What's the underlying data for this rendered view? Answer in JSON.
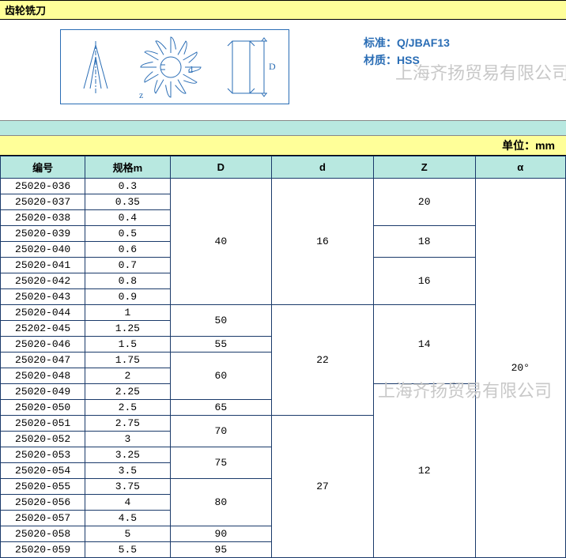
{
  "header": {
    "title": "齿轮铣刀"
  },
  "spec_text": {
    "line1_label": "标准：",
    "line1_value": "Q/JBAF13",
    "line2_label": "材质：",
    "line2_value": "HSS"
  },
  "watermark": "上海齐扬贸易有限公司",
  "unit_bar": "单位：mm",
  "columns": [
    "编号",
    "规格m",
    "D",
    "d",
    "Z",
    "α"
  ],
  "rows": [
    {
      "id": "25020-036",
      "spec": "0.3"
    },
    {
      "id": "25020-037",
      "spec": "0.35"
    },
    {
      "id": "25020-038",
      "spec": "0.4"
    },
    {
      "id": "25020-039",
      "spec": "0.5"
    },
    {
      "id": "25020-040",
      "spec": "0.6"
    },
    {
      "id": "25020-041",
      "spec": "0.7"
    },
    {
      "id": "25020-042",
      "spec": "0.8"
    },
    {
      "id": "25020-043",
      "spec": "0.9"
    },
    {
      "id": "25020-044",
      "spec": "1"
    },
    {
      "id": "25202-045",
      "spec": "1.25"
    },
    {
      "id": "25020-046",
      "spec": "1.5"
    },
    {
      "id": "25020-047",
      "spec": "1.75"
    },
    {
      "id": "25020-048",
      "spec": "2"
    },
    {
      "id": "25020-049",
      "spec": "2.25"
    },
    {
      "id": "25020-050",
      "spec": "2.5"
    },
    {
      "id": "25020-051",
      "spec": "2.75"
    },
    {
      "id": "25020-052",
      "spec": "3"
    },
    {
      "id": "25020-053",
      "spec": "3.25"
    },
    {
      "id": "25020-054",
      "spec": "3.5"
    },
    {
      "id": "25020-055",
      "spec": "3.75"
    },
    {
      "id": "25020-056",
      "spec": "4"
    },
    {
      "id": "25020-057",
      "spec": "4.5"
    },
    {
      "id": "25020-058",
      "spec": "5"
    },
    {
      "id": "25020-059",
      "spec": "5.5"
    }
  ],
  "merge_D": [
    {
      "start": 0,
      "span": 8,
      "value": "40"
    },
    {
      "start": 8,
      "span": 2,
      "value": "50"
    },
    {
      "start": 10,
      "span": 1,
      "value": "55"
    },
    {
      "start": 11,
      "span": 3,
      "value": "60"
    },
    {
      "start": 14,
      "span": 1,
      "value": "65"
    },
    {
      "start": 15,
      "span": 2,
      "value": "70"
    },
    {
      "start": 17,
      "span": 2,
      "value": "75"
    },
    {
      "start": 19,
      "span": 3,
      "value": "80"
    },
    {
      "start": 22,
      "span": 1,
      "value": "90"
    },
    {
      "start": 23,
      "span": 1,
      "value": "95"
    }
  ],
  "merge_d": [
    {
      "start": 0,
      "span": 8,
      "value": "16"
    },
    {
      "start": 8,
      "span": 7,
      "value": "22"
    },
    {
      "start": 15,
      "span": 9,
      "value": "27"
    }
  ],
  "merge_Z": [
    {
      "start": 0,
      "span": 3,
      "value": "20"
    },
    {
      "start": 3,
      "span": 2,
      "value": "18"
    },
    {
      "start": 5,
      "span": 3,
      "value": "16"
    },
    {
      "start": 8,
      "span": 5,
      "value": "14"
    },
    {
      "start": 13,
      "span": 11,
      "value": "12"
    }
  ],
  "merge_a": [
    {
      "start": 0,
      "span": 24,
      "value": "20°"
    }
  ],
  "colors": {
    "header_bg": "#ffff99",
    "band_bg": "#b8e8e0",
    "border": "#1a3a6a",
    "spec_text": "#2a6db5",
    "watermark": "#c8c8c8"
  },
  "diagram": {
    "labels": {
      "z": "z",
      "d": "d",
      "D": "D"
    },
    "stroke": "#2a6db5"
  }
}
